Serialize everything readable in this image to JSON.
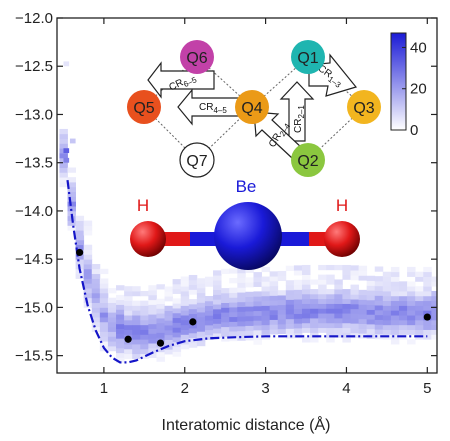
{
  "chart_data": {
    "type": "heatmap",
    "title": "",
    "xlabel": "Interatomic distance (Å)",
    "ylabel": "",
    "xlim": [
      0.42,
      5.12
    ],
    "ylim": [
      -15.68,
      -12.0
    ],
    "x_ticks": [
      1,
      2,
      3,
      4,
      5
    ],
    "y_ticks": [
      -12.0,
      -12.5,
      -13.0,
      -13.5,
      -14.0,
      -14.5,
      -15.0,
      -15.5
    ],
    "y_tick_labels": [
      "−12.0",
      "−12.5",
      "−13.0",
      "−13.5",
      "−14.0",
      "−14.5",
      "−15.0",
      "−15.5"
    ],
    "colorbar": {
      "min": 0,
      "max": 47,
      "ticks": [
        0,
        20,
        40
      ],
      "low_color": "#ffffff",
      "high_color": "#1a1ad6"
    },
    "density_band": {
      "description_x": [
        0.5,
        0.6,
        0.7,
        0.8,
        0.9,
        1.0,
        1.1,
        1.2,
        1.3,
        1.5,
        1.7,
        2.0,
        2.5,
        3.0,
        3.5,
        4.0,
        4.5,
        5.0
      ],
      "center_y": [
        -13.45,
        -13.95,
        -14.4,
        -14.7,
        -14.9,
        -15.1,
        -15.2,
        -15.27,
        -15.3,
        -15.3,
        -15.28,
        -15.2,
        -15.12,
        -15.1,
        -15.08,
        -15.08,
        -15.1,
        -15.1
      ]
    },
    "series": [
      {
        "style": "dash-dot",
        "color": "#1515c8",
        "x": [
          0.55,
          0.62,
          0.7,
          0.8,
          0.9,
          1.0,
          1.1,
          1.2,
          1.3,
          1.4,
          1.5,
          1.6,
          1.8,
          2.0,
          2.3,
          2.6,
          3.0,
          3.5,
          4.0,
          4.5,
          5.0
        ],
        "y": [
          -13.68,
          -14.15,
          -14.6,
          -14.98,
          -15.24,
          -15.42,
          -15.52,
          -15.57,
          -15.57,
          -15.55,
          -15.51,
          -15.47,
          -15.4,
          -15.35,
          -15.32,
          -15.31,
          -15.3,
          -15.3,
          -15.3,
          -15.3,
          -15.3
        ]
      },
      {
        "style": "points",
        "color": "#000000",
        "x": [
          0.7,
          1.3,
          1.7,
          2.1,
          5.0
        ],
        "y": [
          -14.43,
          -15.33,
          -15.37,
          -15.15,
          -15.1
        ]
      }
    ]
  },
  "inset_graph": {
    "nodes": [
      {
        "label": "Q1",
        "color": "#1fb5b0"
      },
      {
        "label": "Q2",
        "color": "#8bc73f"
      },
      {
        "label": "Q3",
        "color": "#f2b51f"
      },
      {
        "label": "Q4",
        "color": "#eb9a17"
      },
      {
        "label": "Q5",
        "color": "#e8501e"
      },
      {
        "label": "Q6",
        "color": "#c241a8"
      },
      {
        "label": "Q7",
        "color": "#ffffff"
      }
    ],
    "arrows": [
      {
        "main": "CR",
        "sub": "6–5"
      },
      {
        "main": "CR",
        "sub": "4–5"
      },
      {
        "main": "CR",
        "sub": "1–3"
      },
      {
        "main": "CR",
        "sub": "2–1"
      },
      {
        "main": "CR",
        "sub": "2–4"
      }
    ]
  },
  "molecule": {
    "labels": [
      "H",
      "Be",
      "H"
    ],
    "colors": {
      "H": "#e01818",
      "Be": "#1a1ad8"
    }
  }
}
